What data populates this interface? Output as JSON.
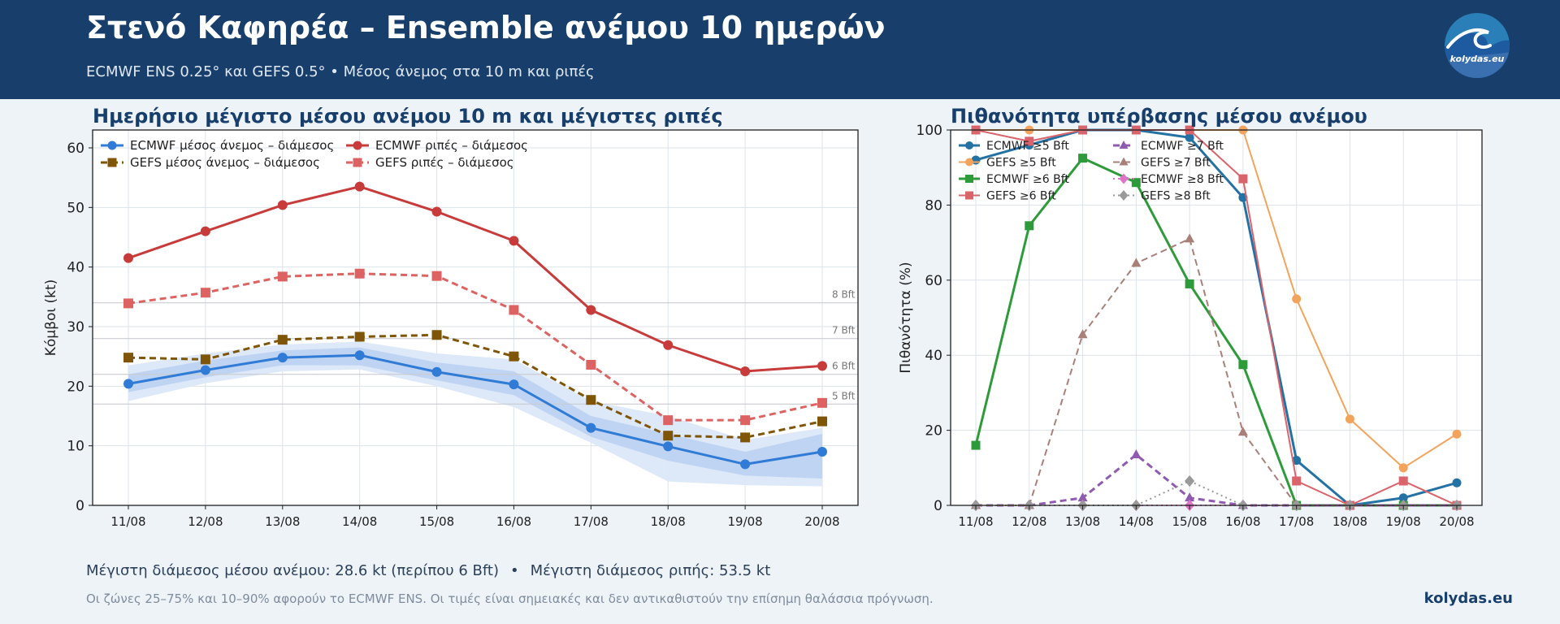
{
  "header": {
    "title": "Στενό Καφηρέα – Ensemble ανέμου 10 ημερών",
    "subtitle": "ECMWF ENS 0.25° και GEFS 0.5° • Μέσος άνεμος στα 10 m και ριπές",
    "logo_text": "kolydas.eu"
  },
  "colors": {
    "header_bg": "#183f6b",
    "page_bg": "#eef3f8",
    "ecmwf_wind": "#2f7bd6",
    "gefs_wind": "#7f5608",
    "ecmwf_gust": "#c73b3b",
    "gefs_gust": "#dd6363"
  },
  "chart_data": [
    {
      "type": "line",
      "title": "Ημερήσιο μέγιστο μέσου ανέμου 10 m και μέγιστες ριπές",
      "ylabel": "Κόμβοι (kt)",
      "xlabel": "",
      "ylim": [
        0,
        63
      ],
      "yticks": [
        0,
        10,
        20,
        30,
        40,
        50,
        60
      ],
      "grid": true,
      "legend": "top-left",
      "categories": [
        "11/08",
        "12/08",
        "13/08",
        "14/08",
        "15/08",
        "16/08",
        "17/08",
        "18/08",
        "19/08",
        "20/08"
      ],
      "series": [
        {
          "name": "ECMWF μέσος άνεμος – διάμεσος",
          "values": [
            20.4,
            22.7,
            24.8,
            25.2,
            22.4,
            20.3,
            13.0,
            9.9,
            6.9,
            9.0
          ],
          "color": "#2f7bd6",
          "marker": "circle",
          "dash": "solid"
        },
        {
          "name": "GEFS μέσος άνεμος – διάμεσος",
          "values": [
            24.8,
            24.5,
            27.8,
            28.3,
            28.6,
            25.0,
            17.7,
            11.7,
            11.4,
            14.1
          ],
          "color": "#7f5608",
          "marker": "square",
          "dash": "dashed"
        },
        {
          "name": "ECMWF ριπές – διάμεσος",
          "values": [
            41.5,
            46.0,
            50.4,
            53.5,
            49.3,
            44.4,
            32.8,
            26.9,
            22.5,
            23.4
          ],
          "color": "#c73b3b",
          "marker": "circle",
          "dash": "solid"
        },
        {
          "name": "GEFS ριπές – διάμεσος",
          "values": [
            33.9,
            35.7,
            38.4,
            38.9,
            38.5,
            32.8,
            23.6,
            14.3,
            14.3,
            17.2
          ],
          "color": "#dd6363",
          "marker": "square",
          "dash": "dashed"
        }
      ],
      "bands": [
        {
          "range": "10–90%",
          "lower": [
            17.5,
            20.5,
            22.5,
            22.8,
            20.0,
            16.5,
            10.5,
            4.0,
            3.4,
            3.2
          ],
          "upper": [
            23.5,
            25.5,
            27.0,
            27.5,
            25.5,
            24.5,
            17.5,
            15.0,
            11.0,
            13.0
          ],
          "color": "#dbe7f8"
        },
        {
          "range": "25–75%",
          "lower": [
            19.0,
            21.5,
            23.5,
            23.5,
            21.0,
            18.5,
            11.5,
            7.5,
            5.0,
            4.5
          ],
          "upper": [
            22.0,
            24.3,
            26.0,
            26.5,
            24.0,
            22.5,
            15.0,
            12.0,
            9.0,
            12.0
          ],
          "color": "#bdd3f2"
        }
      ],
      "reference_lines": [
        {
          "label": "5 Bft",
          "value": 17
        },
        {
          "label": "6 Bft",
          "value": 22
        },
        {
          "label": "7 Bft",
          "value": 28
        },
        {
          "label": "8 Bft",
          "value": 34
        }
      ]
    },
    {
      "type": "line",
      "title": "Πιθανότητα υπέρβασης μέσου ανέμου",
      "ylabel": "Πιθανότητα (%)",
      "xlabel": "",
      "ylim": [
        0,
        100
      ],
      "yticks": [
        0,
        20,
        40,
        60,
        80,
        100
      ],
      "grid": true,
      "legend": "top-left",
      "categories": [
        "11/08",
        "12/08",
        "13/08",
        "14/08",
        "15/08",
        "16/08",
        "17/08",
        "18/08",
        "19/08",
        "20/08"
      ],
      "series": [
        {
          "name": "ECMWF ≥5 Bft",
          "values": [
            92,
            96,
            100,
            100,
            98,
            82,
            12,
            0,
            2,
            6
          ],
          "color": "#2471a3",
          "marker": "circle",
          "dash": "solid",
          "width": 3
        },
        {
          "name": "GEFS ≥5 Bft",
          "values": [
            100,
            100,
            100,
            100,
            100,
            100,
            55,
            23,
            10,
            19
          ],
          "color": "#f2a45c",
          "marker": "circle",
          "dash": "solid",
          "width": 2
        },
        {
          "name": "ECMWF ≥6 Bft",
          "values": [
            16,
            74.5,
            92.5,
            86,
            59,
            37.5,
            0,
            0,
            0,
            0
          ],
          "color": "#2e9b3a",
          "marker": "square",
          "dash": "solid",
          "width": 3
        },
        {
          "name": "GEFS ≥6 Bft",
          "values": [
            100,
            97,
            100,
            100,
            100,
            87,
            6.5,
            0,
            6.5,
            0
          ],
          "color": "#d9646b",
          "marker": "square",
          "dash": "solid",
          "width": 2
        },
        {
          "name": "ECMWF ≥7 Bft",
          "values": [
            0,
            0,
            2,
            13.5,
            2,
            0,
            0,
            0,
            0,
            0
          ],
          "color": "#8e5bb0",
          "marker": "triangle",
          "dash": "dashed",
          "width": 3
        },
        {
          "name": "GEFS ≥7 Bft",
          "values": [
            0,
            0,
            45.5,
            64.5,
            71,
            19.5,
            0,
            0,
            0,
            0
          ],
          "color": "#a88079",
          "marker": "triangle",
          "dash": "dashed",
          "width": 2
        },
        {
          "name": "ECMWF ≥8 Bft",
          "values": [
            0,
            0,
            0,
            0,
            0,
            0,
            0,
            0,
            0,
            0
          ],
          "color": "#df74c6",
          "marker": "diamond",
          "dash": "dotted",
          "width": 2
        },
        {
          "name": "GEFS ≥8 Bft",
          "values": [
            0,
            0,
            0,
            0,
            6.5,
            0,
            0,
            0,
            0,
            0
          ],
          "color": "#9a9a9a",
          "marker": "diamond",
          "dash": "dotted",
          "width": 2
        }
      ]
    }
  ],
  "footer": {
    "max_wind_text": "Μέγιστη διάμεσος μέσου ανέμου: 28.6 kt (περίπου 6 Bft)",
    "separator": "•",
    "max_gust_text": "Μέγιστη διάμεσος ριπής: 53.5 kt",
    "note": "Οι ζώνες 25–75% και 10–90% αφορούν το ECMWF ENS. Οι τιμές είναι σημειακές και δεν αντικαθιστούν την επίσημη θαλάσσια πρόγνωση.",
    "brand": "kolydas.eu"
  }
}
